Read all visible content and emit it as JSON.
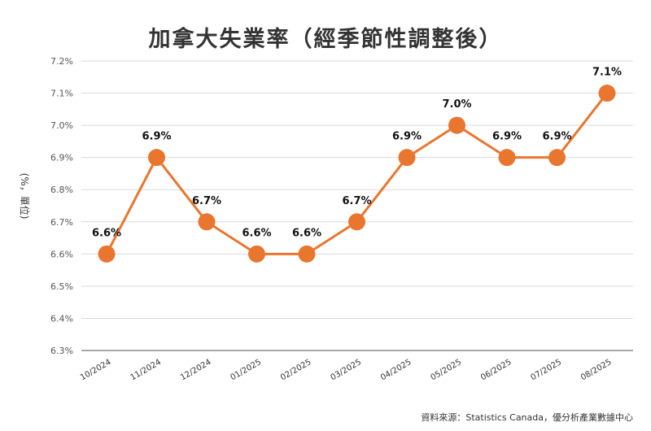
{
  "chart_data": {
    "type": "line",
    "title": "加拿大失業率（經季節性調整後）",
    "ylabel": "(%，單位)",
    "xlabel": "",
    "categories": [
      "10/2024",
      "11/2024",
      "12/2024",
      "01/2025",
      "02/2025",
      "03/2025",
      "04/2025",
      "05/2025",
      "06/2025",
      "07/2025",
      "08/2025"
    ],
    "series": [
      {
        "values": [
          6.6,
          6.9,
          6.7,
          6.6,
          6.6,
          6.7,
          6.9,
          7.0,
          6.9,
          6.9,
          7.1
        ],
        "data_labels": [
          "6.6%",
          "6.9%",
          "6.7%",
          "6.6%",
          "6.6%",
          "6.7%",
          "6.9%",
          "7.0%",
          "6.9%",
          "6.9%",
          "7.1%"
        ]
      }
    ],
    "ylim": [
      6.3,
      7.2
    ],
    "yticks": [
      "6.3%",
      "6.4%",
      "6.5%",
      "6.6%",
      "6.7%",
      "6.8%",
      "6.9%",
      "7.0%",
      "7.1%",
      "7.2%"
    ],
    "grid": true,
    "legend": "none",
    "colors": {
      "line": "#E8762F",
      "grid": "#d9d9d9",
      "baseline": "#8c8c8c"
    }
  },
  "source": "資料來源：Statistics Canada，優分析產業數據中心"
}
